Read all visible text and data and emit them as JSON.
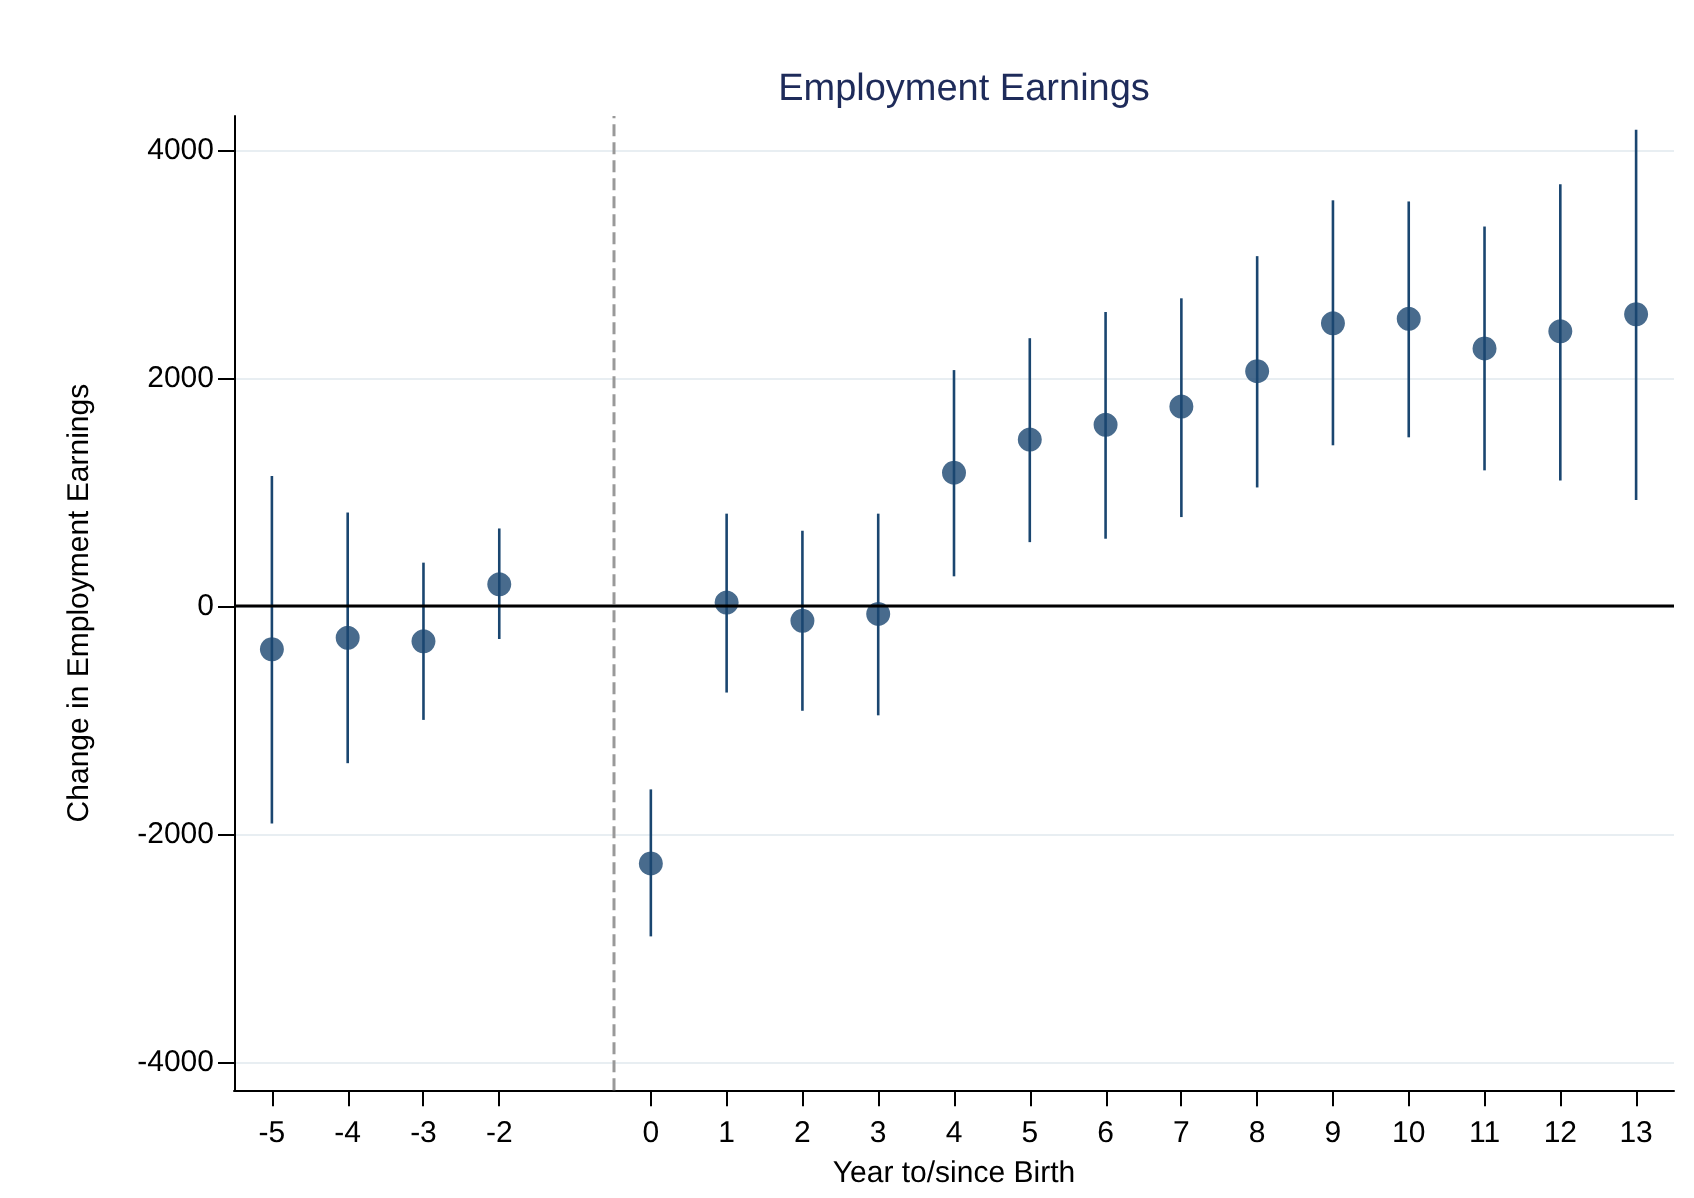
{
  "chart_data": {
    "type": "scatter",
    "title": "Employment Earnings",
    "xlabel": "Year to/since Birth",
    "ylabel": "Change in Employment Earnings",
    "x": [
      -5,
      -4,
      -3,
      -2,
      0,
      1,
      2,
      3,
      4,
      5,
      6,
      7,
      8,
      9,
      10,
      11,
      12,
      13
    ],
    "values": [
      -380,
      -280,
      -310,
      190,
      -2260,
      30,
      -130,
      -70,
      1170,
      1460,
      1590,
      1750,
      2060,
      2480,
      2520,
      2260,
      2410,
      2560
    ],
    "errors": [
      [
        -1910,
        1140
      ],
      [
        -1380,
        820
      ],
      [
        -1000,
        380
      ],
      [
        -290,
        680
      ],
      [
        -2900,
        -1610
      ],
      [
        -760,
        810
      ],
      [
        -920,
        660
      ],
      [
        -960,
        810
      ],
      [
        260,
        2070
      ],
      [
        560,
        2350
      ],
      [
        590,
        2580
      ],
      [
        780,
        2700
      ],
      [
        1040,
        3070
      ],
      [
        1410,
        3560
      ],
      [
        1480,
        3550
      ],
      [
        1190,
        3330
      ],
      [
        1100,
        3700
      ],
      [
        930,
        4180
      ]
    ],
    "color": "#1a4670",
    "marker": "circle",
    "xlim": [
      -5.5,
      13.5
    ],
    "xticks": [
      -5,
      -4,
      -3,
      -2,
      0,
      1,
      2,
      3,
      4,
      5,
      6,
      7,
      8,
      9,
      10,
      11,
      12,
      13
    ],
    "ylim": [
      -4250,
      4300
    ],
    "yticks": [
      -4000,
      -2000,
      0,
      2000,
      4000
    ],
    "grid": "y",
    "ref_lines": [
      {
        "axis": "x",
        "value": -0.5,
        "color": "#999999",
        "line_style": "dashed"
      },
      {
        "axis": "y",
        "value": 0,
        "color": "#000000",
        "line_style": "solid"
      }
    ]
  }
}
